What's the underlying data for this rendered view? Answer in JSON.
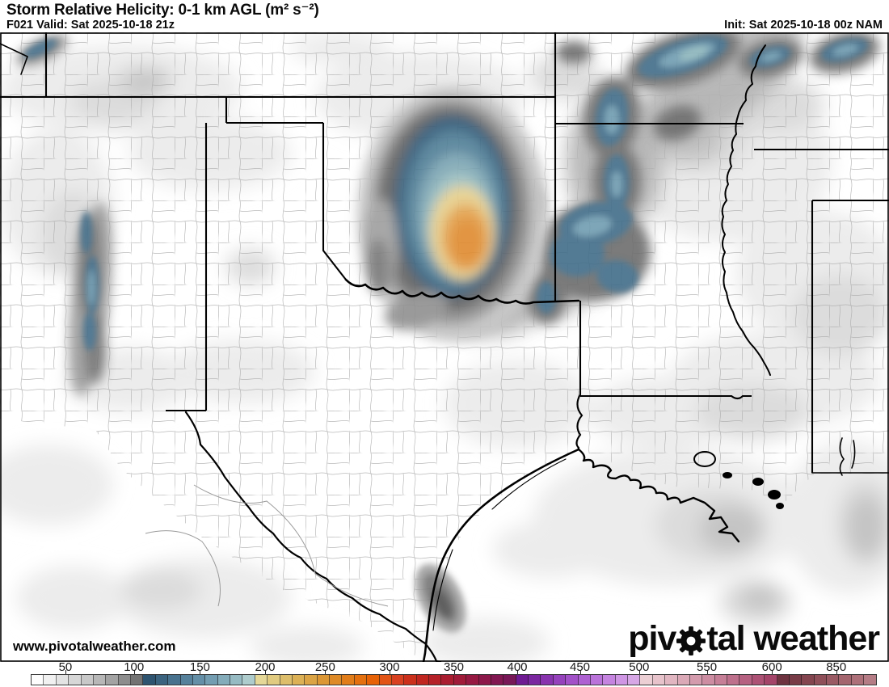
{
  "header": {
    "title": "Storm Relative Helicity: 0-1 km AGL (m² s⁻²)",
    "valid": "F021 Valid: Sat 2025-10-18 21z",
    "init": "Init: Sat 2025-10-18 00z NAM"
  },
  "map": {
    "watermark": "www.pivotalweather.com"
  },
  "logo": {
    "pre": "piv",
    "post": "tal weather",
    "gear_icon": "gear-icon"
  },
  "colorbar": {
    "ticks": [
      {
        "label": "50",
        "pos": 0.041
      },
      {
        "label": "100",
        "pos": 0.122
      },
      {
        "label": "150",
        "pos": 0.2
      },
      {
        "label": "200",
        "pos": 0.277
      },
      {
        "label": "250",
        "pos": 0.348
      },
      {
        "label": "300",
        "pos": 0.424
      },
      {
        "label": "350",
        "pos": 0.5
      },
      {
        "label": "400",
        "pos": 0.575
      },
      {
        "label": "450",
        "pos": 0.649
      },
      {
        "label": "500",
        "pos": 0.719
      },
      {
        "label": "550",
        "pos": 0.799
      },
      {
        "label": "600",
        "pos": 0.876
      },
      {
        "label": "850",
        "pos": 0.952
      }
    ],
    "segment_colors": [
      "#fdfdfd",
      "#f1f1f1",
      "#e4e4e4",
      "#d7d7d7",
      "#c8c8c8",
      "#b7b7b7",
      "#a3a3a3",
      "#8d8d8d",
      "#737373",
      "#2e5470",
      "#3b637f",
      "#48728e",
      "#56819b",
      "#648fa7",
      "#739db1",
      "#84acba",
      "#97bbc3",
      "#aecccd",
      "#e5d898",
      "#e1cb80",
      "#ddbe6b",
      "#dcb156",
      "#dba445",
      "#dc9735",
      "#de8a27",
      "#e17d1a",
      "#e4700f",
      "#e76206",
      "#e25415",
      "#d84020",
      "#cb301b",
      "#c02620",
      "#b52128",
      "#aa1d30",
      "#a01b39",
      "#961942",
      "#8c184a",
      "#821751",
      "#781757",
      "#6f1a92",
      "#7b27a0",
      "#8834ae",
      "#9542bc",
      "#a251c8",
      "#ae61d2",
      "#ba73da",
      "#c584e0",
      "#cf96e4",
      "#d7a7e6",
      "#eccfd4",
      "#e7c3cb",
      "#e1b6c1",
      "#dba9b7",
      "#d49bad",
      "#cd8da2",
      "#c67f97",
      "#be708c",
      "#b66181",
      "#ad5275",
      "#a44469",
      "#6e3340",
      "#783c47",
      "#84454f",
      "#8f4f59",
      "#9a5a64",
      "#a4656e",
      "#ad7079",
      "#b57c85"
    ]
  },
  "chart_data": {
    "type": "heatmap",
    "title": "Storm Relative Helicity: 0-1 km AGL (m² s⁻²)",
    "legend_values": [
      50,
      100,
      150,
      200,
      250,
      300,
      350,
      400,
      450,
      500,
      550,
      600,
      850
    ],
    "notes": "Filled contour map; maximum (orange core ~250-300) over southern Oklahoma / Red River; secondary blue maxima (~100-200) over Ozarks, NW Arkansas, NE Texas, central New Mexico and far NE corner"
  }
}
